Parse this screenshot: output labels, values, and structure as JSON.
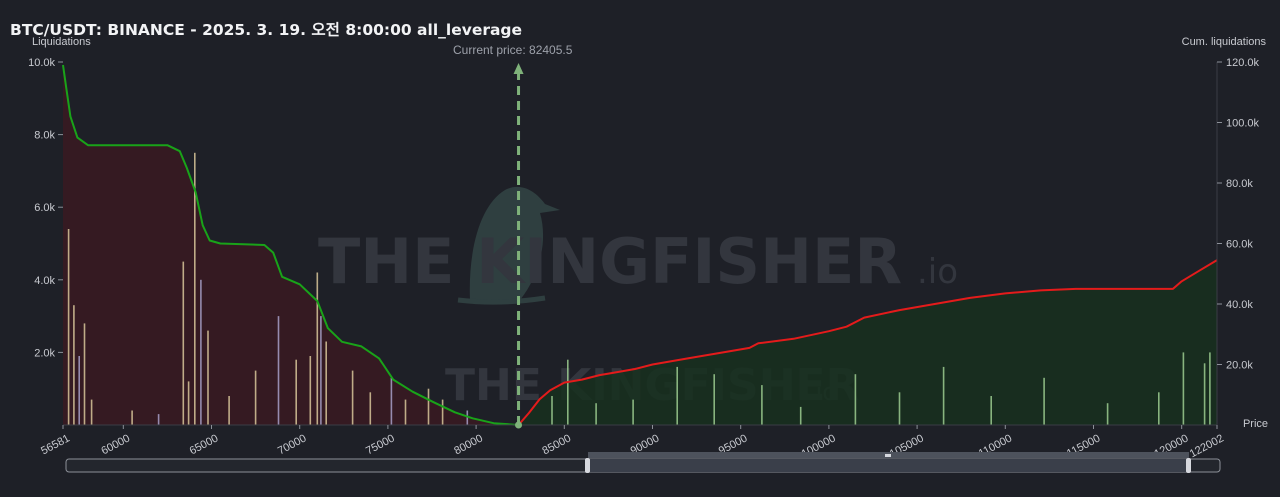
{
  "header": {
    "title": "BTC/USDT: BINANCE - 2025. 3. 19. 오전 8:00:00 all_leverage"
  },
  "axes": {
    "left_title": "Liquidations",
    "right_title": "Cum. liquidations",
    "x_title": "Price"
  },
  "current_price_label": "Current price: 82405.5",
  "watermark": {
    "brand": "THE KINGFISHER",
    "suffix": ".io",
    "icon": "kingfisher-bird-icon"
  },
  "chart_data": {
    "type": "bar",
    "current_price": 82405.5,
    "xlim": [
      56581,
      122002
    ],
    "ylim_left": [
      0,
      10000
    ],
    "ylim_right": [
      0,
      120000
    ],
    "x_ticks": [
      "56581",
      "60000",
      "65000",
      "70000",
      "75000",
      "80000",
      "85000",
      "90000",
      "95000",
      "100000",
      "105000",
      "110000",
      "115000",
      "120000",
      "122002"
    ],
    "y_left_ticks": [
      "2.0k",
      "4.0k",
      "6.0k",
      "8.0k",
      "10.0k"
    ],
    "y_right_ticks": [
      "20.0k",
      "40.0k",
      "60.0k",
      "80.0k",
      "100.0k",
      "120.0k"
    ],
    "colors": {
      "short_cum_line": "#19a319",
      "short_cum_fill": "#3a1a22",
      "long_cum_line": "#e41b1b",
      "long_cum_fill": "#17301f",
      "bars_below": "#d8c79a",
      "bars_mid": "#a7a0c8",
      "bars_above": "#9ccc90",
      "current_price_line": "#7fb27a"
    },
    "series": [
      {
        "name": "",
        "kind": "cumulative_left",
        "axis": "right",
        "x": [
          56581,
          56750,
          57000,
          57400,
          58000,
          62500,
          63200,
          63600,
          64100,
          64500,
          64900,
          65500,
          68000,
          68500,
          69000,
          70000,
          71000,
          71600,
          72400,
          73500,
          74500,
          75300,
          76400,
          77600,
          78800,
          79800,
          81000,
          82405.5
        ],
        "values": [
          119000,
          112000,
          102000,
          95000,
          92500,
          92500,
          90500,
          85000,
          77000,
          66000,
          61000,
          60000,
          59500,
          57000,
          49000,
          46500,
          41000,
          32000,
          27500,
          26000,
          22000,
          15000,
          11000,
          7500,
          4200,
          2200,
          600,
          0
        ]
      },
      {
        "name": "",
        "kind": "cumulative_right",
        "axis": "right",
        "x": [
          82405.5,
          83000,
          83600,
          84200,
          85000,
          86000,
          87000,
          88000,
          89000,
          90000,
          92000,
          94000,
          95500,
          96000,
          98000,
          100000,
          101000,
          102000,
          104000,
          106000,
          108000,
          110000,
          112000,
          114000,
          117000,
          119500,
          120000,
          121000,
          122002
        ],
        "values": [
          0,
          4000,
          8500,
          11500,
          14000,
          15000,
          16500,
          17500,
          18500,
          20000,
          22000,
          24000,
          25500,
          27000,
          28500,
          31000,
          32500,
          35500,
          38000,
          40000,
          42000,
          43500,
          44500,
          45000,
          45000,
          45000,
          47500,
          51000,
          54500
        ]
      },
      {
        "name": "",
        "kind": "liquidation_bars",
        "axis": "left",
        "x": [
          56900,
          57200,
          57500,
          57800,
          58200,
          60500,
          62000,
          63400,
          63700,
          64050,
          64400,
          64800,
          66000,
          67500,
          68800,
          69800,
          70600,
          71000,
          71200,
          71500,
          73000,
          74000,
          75200,
          76000,
          77300,
          78100,
          79500,
          84300,
          85200,
          86800,
          88900,
          91400,
          93500,
          96200,
          98400,
          101500,
          104000,
          106500,
          109200,
          112200,
          115800,
          118700,
          120100,
          121300,
          121600
        ],
        "values": [
          5400,
          3300,
          1900,
          2800,
          700,
          400,
          300,
          4500,
          1200,
          7500,
          4000,
          2600,
          800,
          1500,
          3000,
          1800,
          1900,
          4200,
          3000,
          2300,
          1500,
          900,
          1300,
          700,
          1000,
          700,
          400,
          800,
          1800,
          600,
          700,
          1600,
          1400,
          1100,
          500,
          1400,
          900,
          1600,
          800,
          1300,
          600,
          900,
          2000,
          1700,
          2000
        ]
      }
    ]
  }
}
